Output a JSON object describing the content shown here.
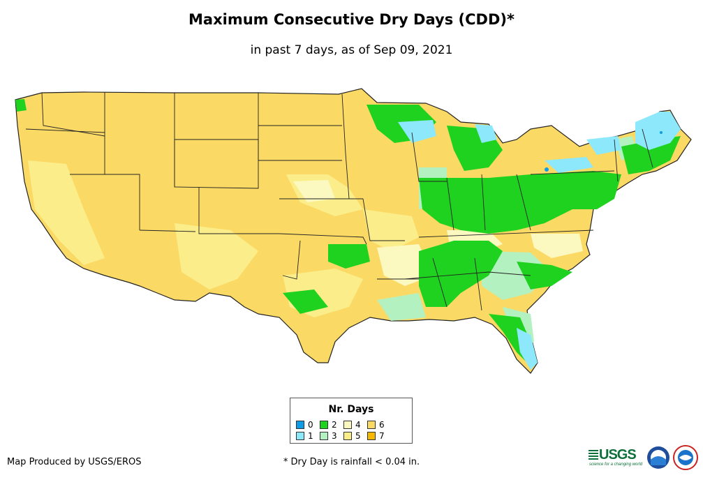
{
  "title": "Maximum Consecutive Dry Days (CDD)*",
  "subtitle": "in past 7 days, as of Sep 09, 2021",
  "legend": {
    "title": "Nr. Days",
    "items": [
      {
        "label": "0",
        "color": "#0f9ce6"
      },
      {
        "label": "1",
        "color": "#8ee8fb"
      },
      {
        "label": "2",
        "color": "#1fd21f"
      },
      {
        "label": "3",
        "color": "#b3f2c0"
      },
      {
        "label": "4",
        "color": "#fbf8c0"
      },
      {
        "label": "5",
        "color": "#fbee8a"
      },
      {
        "label": "6",
        "color": "#fbd965"
      },
      {
        "label": "7",
        "color": "#f7b800"
      }
    ]
  },
  "producer": "Map Produced by USGS/EROS",
  "footnote": "* Dry Day is rainfall < 0.04 in.",
  "logos": {
    "usgs_text": "USGS",
    "usgs_tagline": "science for a changing world",
    "noaa": "noaa-logo",
    "nws": "nws-logo"
  },
  "map": {
    "region": "Contiguous United States",
    "dominant_class": "6",
    "wetter_regions": [
      "Ohio Valley",
      "Great Lakes",
      "Northeast",
      "Southeast",
      "Florida"
    ]
  },
  "colors": {
    "state_border": "#222222",
    "text": "#000000"
  }
}
